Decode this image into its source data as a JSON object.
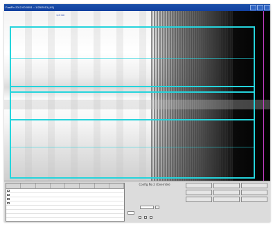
{
  "window": {
    "title": "FastFlx 2012.00.0051 :: 1/25/2013 (4/1)"
  },
  "viewer": {
    "pixel_readout": "1,2 nm"
  },
  "controls": {
    "config_label": "Config No 2 (Override)"
  },
  "colors": {
    "overlay": "#24d4dc",
    "marker": "#d040d0",
    "titlebar": "#1a4fa8"
  }
}
